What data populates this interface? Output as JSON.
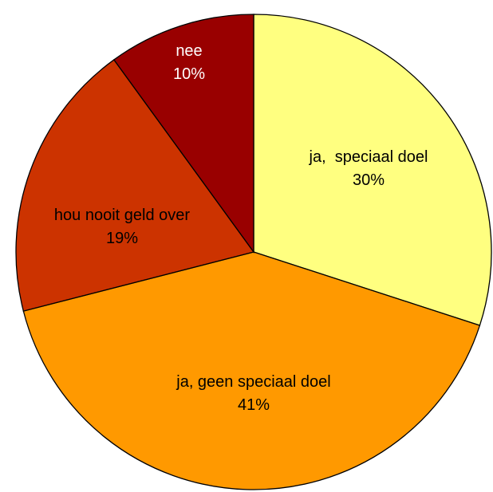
{
  "chart_data": {
    "type": "pie",
    "categories": [
      "ja,  speciaal doel",
      "ja, geen speciaal doel",
      "hou nooit geld over",
      "nee"
    ],
    "values": [
      30,
      41,
      19,
      10
    ],
    "value_labels": [
      "30%",
      "41%",
      "19%",
      "10%"
    ],
    "colors": [
      "#ffff80",
      "#ff9900",
      "#cc3300",
      "#990000"
    ]
  }
}
